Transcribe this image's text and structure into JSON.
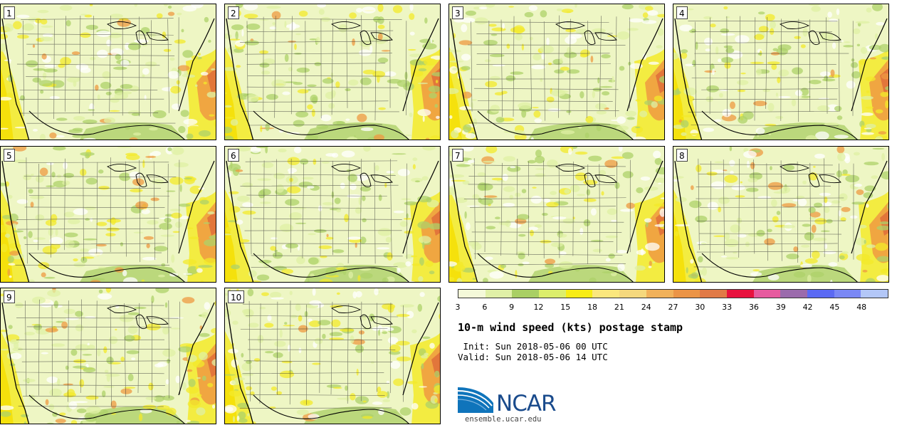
{
  "panels": [
    {
      "label": "1"
    },
    {
      "label": "2"
    },
    {
      "label": "3"
    },
    {
      "label": "4"
    },
    {
      "label": "5"
    },
    {
      "label": "6"
    },
    {
      "label": "7"
    },
    {
      "label": "8"
    },
    {
      "label": "9"
    },
    {
      "label": "10"
    }
  ],
  "colorbar": {
    "ticks": [
      "3",
      "6",
      "9",
      "12",
      "15",
      "18",
      "21",
      "24",
      "27",
      "30",
      "33",
      "36",
      "39",
      "42",
      "45",
      "48"
    ],
    "colors": [
      "#f4f9d9",
      "#e0f0a7",
      "#a9cf64",
      "#dcee6c",
      "#f7ec16",
      "#fbe77d",
      "#f5d87d",
      "#f1b15a",
      "#eb9446",
      "#e17a47",
      "#e8123e",
      "#e75b9f",
      "#9b6bac",
      "#5b6af3",
      "#7a88f5",
      "#b3c7f7"
    ]
  },
  "title": "10-m wind speed (kts) postage stamp",
  "init": " Init: Sun 2018-05-06 00 UTC",
  "valid": "Valid: Sun 2018-05-06 14 UTC",
  "logo": {
    "name": "NCAR",
    "url": "ensemble.ucar.edu"
  },
  "map_colors": {
    "land": "#eef6c4",
    "light_green": "#dff0a4",
    "green": "#aed16a",
    "yellow": "#f3ea2a",
    "orange": "#ee9a42",
    "red": "#df6a3a",
    "white": "#ffffff"
  }
}
